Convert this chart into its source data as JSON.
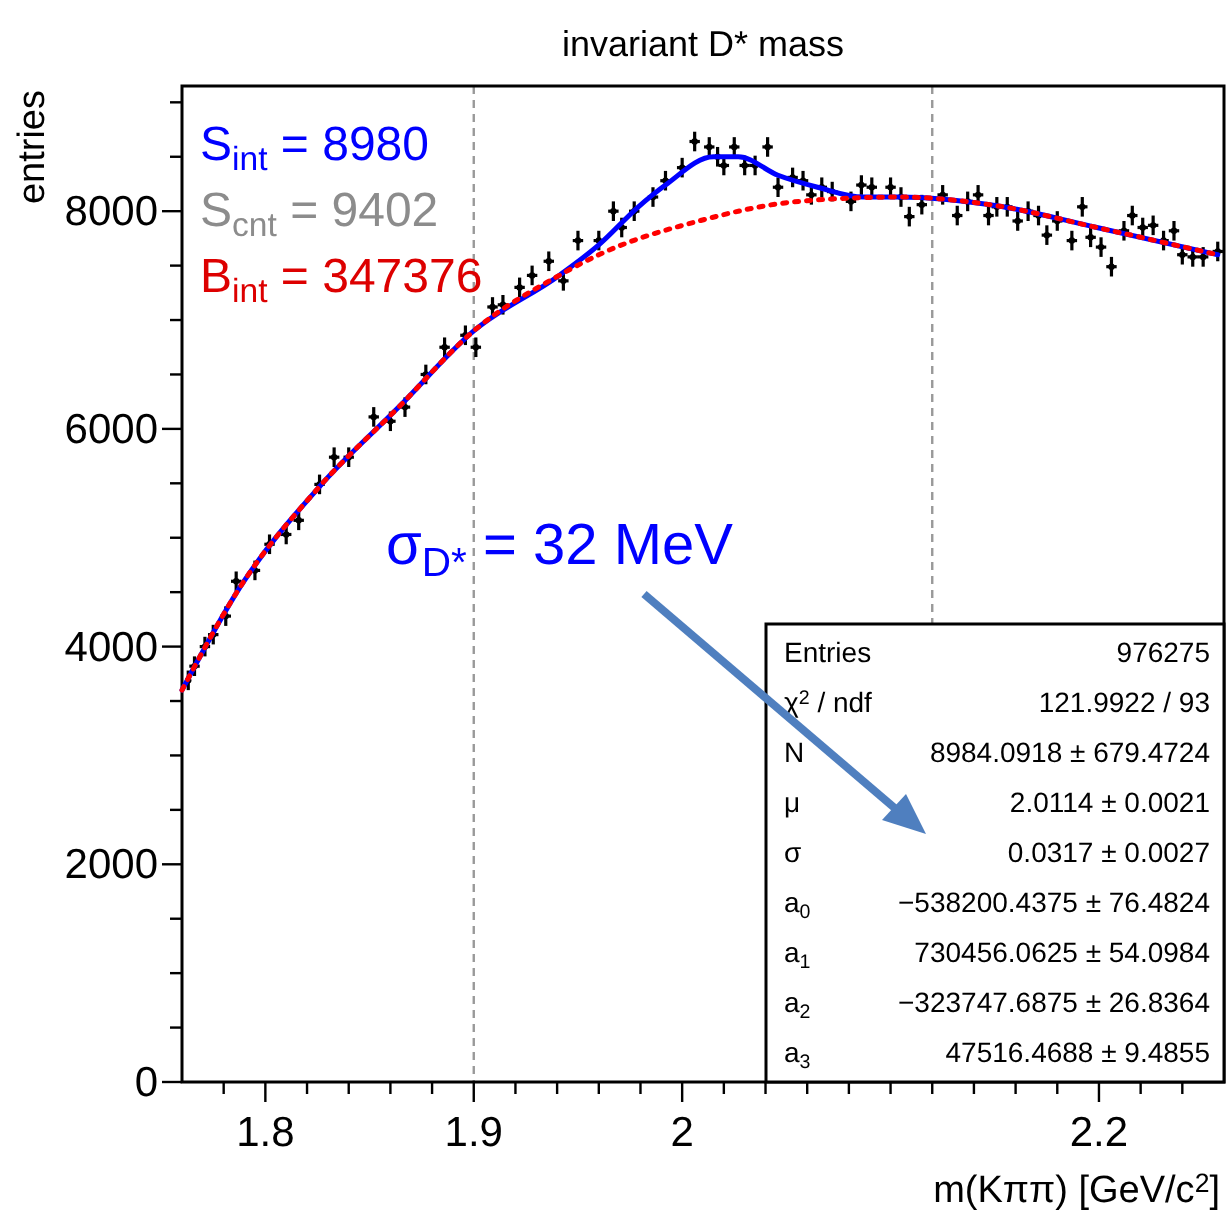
{
  "chart_data": {
    "type": "scatter",
    "title": "invariant D* mass",
    "xlabel": "m(Kππ) [GeV/c$^{2}$]",
    "ylabel": "entries",
    "xlim": [
      1.76,
      2.26
    ],
    "ylim": [
      0,
      9150
    ],
    "xticks": [
      1.8,
      1.9,
      2,
      {
        "value": 2.1,
        "label": null
      },
      2.2,
      {
        "value": 1.78,
        "label": null
      },
      {
        "value": 1.82,
        "label": null
      },
      {
        "value": 1.84,
        "label": null
      },
      {
        "value": 1.86,
        "label": null
      },
      {
        "value": 1.88,
        "label": null
      },
      {
        "value": 1.92,
        "label": null
      },
      {
        "value": 1.94,
        "label": null
      },
      {
        "value": 1.96,
        "label": null
      },
      {
        "value": 1.98,
        "label": null
      },
      {
        "value": 2.02,
        "label": null
      },
      {
        "value": 2.04,
        "label": null
      },
      {
        "value": 2.06,
        "label": null
      },
      {
        "value": 2.08,
        "label": null
      },
      {
        "value": 2.12,
        "label": null
      },
      {
        "value": 2.14,
        "label": null
      },
      {
        "value": 2.16,
        "label": null
      },
      {
        "value": 2.18,
        "label": null
      },
      {
        "value": 2.22,
        "label": null
      },
      {
        "value": 2.24,
        "label": null
      }
    ],
    "yticks": [
      0,
      2000,
      4000,
      6000,
      8000,
      {
        "value": 500,
        "label": null
      },
      {
        "value": 1000,
        "label": null
      },
      {
        "value": 1500,
        "label": null
      },
      {
        "value": 2500,
        "label": null
      },
      {
        "value": 3000,
        "label": null
      },
      {
        "value": 3500,
        "label": null
      },
      {
        "value": 4500,
        "label": null
      },
      {
        "value": 5000,
        "label": null
      },
      {
        "value": 5500,
        "label": null
      },
      {
        "value": 6500,
        "label": null
      },
      {
        "value": 7000,
        "label": null
      },
      {
        "value": 7500,
        "label": null
      },
      {
        "value": 8500,
        "label": null
      },
      {
        "value": 9000,
        "label": null
      }
    ],
    "grid": false,
    "series": [
      {
        "color": "#000000",
        "marker": "circle",
        "x": [
          1.763,
          1.766,
          1.771,
          1.775,
          1.781,
          1.786,
          1.795,
          1.802,
          1.81,
          1.816,
          1.826,
          1.833,
          1.84,
          1.852,
          1.86,
          1.867,
          1.877,
          1.886,
          1.896,
          1.901,
          1.909,
          1.914,
          1.922,
          1.928,
          1.936,
          1.943,
          1.95,
          1.96,
          1.967,
          1.971,
          1.977,
          1.986,
          1.992,
          2.0,
          2.006,
          2.013,
          2.017,
          2.02,
          2.025,
          2.03,
          2.035,
          2.041,
          2.046,
          2.053,
          2.058,
          2.062,
          2.067,
          2.072,
          2.081,
          2.086,
          2.091,
          2.1,
          2.105,
          2.109,
          2.115,
          2.125,
          2.132,
          2.137,
          2.142,
          2.147,
          2.151,
          2.156,
          2.161,
          2.166,
          2.171,
          2.175,
          2.18,
          2.187,
          2.192,
          2.196,
          2.201,
          2.206,
          2.212,
          2.216,
          2.221,
          2.226,
          2.231,
          2.236,
          2.24,
          2.245,
          2.25,
          2.257
        ],
        "values": [
          3690,
          3820,
          4000,
          4110,
          4280,
          4600,
          4700,
          4940,
          5030,
          5160,
          5490,
          5740,
          5740,
          6110,
          6070,
          6200,
          6500,
          6750,
          6860,
          6750,
          7120,
          7140,
          7300,
          7410,
          7540,
          7360,
          7730,
          7730,
          8000,
          7850,
          8000,
          8130,
          8280,
          8400,
          8640,
          8590,
          8500,
          8420,
          8590,
          8420,
          8420,
          8590,
          8220,
          8310,
          8280,
          8150,
          8220,
          8180,
          8090,
          8240,
          8220,
          8220,
          8130,
          7950,
          8060,
          8150,
          7960,
          8090,
          8150,
          7960,
          8040,
          8040,
          7910,
          8000,
          7960,
          7780,
          7910,
          7730,
          8040,
          7760,
          7670,
          7490,
          7820,
          7960,
          7850,
          7870,
          7730,
          7820,
          7600,
          7580,
          7580,
          7630
        ],
        "errors": [
          90,
          90,
          90,
          90,
          90,
          90,
          90,
          90,
          90,
          90,
          90,
          90,
          90,
          90,
          90,
          90,
          90,
          90,
          90,
          90,
          90,
          90,
          90,
          90,
          90,
          90,
          90,
          90,
          90,
          90,
          90,
          90,
          90,
          90,
          90,
          90,
          90,
          90,
          90,
          90,
          90,
          90,
          90,
          90,
          90,
          90,
          90,
          90,
          90,
          90,
          90,
          90,
          90,
          90,
          90,
          90,
          90,
          90,
          90,
          90,
          90,
          90,
          90,
          90,
          90,
          90,
          90,
          90,
          90,
          90,
          90,
          90,
          90,
          90,
          90,
          90,
          90,
          90,
          90,
          90,
          90,
          90
        ],
        "xerrors": [
          null,
          0.0025,
          0.0025,
          0.0025,
          0.0025,
          0.0025,
          0.0025,
          0.0025,
          0.0025,
          0.0025,
          0.0025,
          0.0025,
          0.0025,
          0.0025,
          0.0025,
          0.0025,
          0.0025,
          0.0025,
          0.0025,
          0.0025,
          0.0025,
          0.0025,
          0.0025,
          0.0025,
          0.0025,
          0.0025,
          0.0025,
          0.0025,
          0.0025,
          0.0025,
          0.0025,
          0.0025,
          0.0025,
          0.0025,
          0.0025,
          0.0025,
          0.0025,
          0.0025,
          0.0025,
          0.0025,
          0.0025,
          0.0025,
          0.0025,
          0.0025,
          0.0025,
          0.0025,
          0.0025,
          0.0025,
          0.0025,
          0.0025,
          0.0025,
          0.0025,
          0.0025,
          0.0025,
          0.0025,
          0.0025,
          0.0025,
          0.0025,
          0.0025,
          0.0025,
          0.0025,
          0.0025,
          0.0025,
          0.0025,
          0.0025,
          0.0025,
          0.0025,
          0.0025,
          0.0025,
          0.0025,
          0.0025,
          0.0025,
          0.0025,
          0.0025,
          0.0025,
          0.0025,
          0.0025,
          0.0025,
          0.0025,
          0.0025,
          0.0025,
          0.0025
        ]
      },
      {
        "type": "line",
        "color": "#0000ff",
        "line_style": "solid",
        "x": [
          1.76,
          1.788,
          1.826,
          1.864,
          1.9,
          1.941,
          1.96,
          1.979,
          1.992,
          2.015,
          2.027,
          2.046,
          2.065,
          2.087,
          2.104,
          2.151,
          2.199,
          2.257
        ],
        "values": [
          3600,
          4550,
          5470,
          6200,
          6900,
          7410,
          7690,
          8040,
          8240,
          8500,
          8500,
          8330,
          8220,
          8130,
          8130,
          8050,
          7850,
          7600
        ]
      },
      {
        "type": "line",
        "color": "#ff0000",
        "line_style": "dotted",
        "x": [
          1.76,
          1.788,
          1.826,
          1.864,
          1.9,
          1.941,
          1.96,
          2.008,
          2.056,
          2.104,
          2.151,
          2.199,
          2.257
        ],
        "values": [
          3600,
          4550,
          5470,
          6200,
          6900,
          7410,
          7600,
          7910,
          8090,
          8130,
          8050,
          7850,
          7600
        ]
      }
    ],
    "ref_lines": [
      {
        "axis": "x",
        "value": 1.9,
        "color": "#999999",
        "line_style": "dashed"
      },
      {
        "axis": "x",
        "value": 2.12,
        "color": "#999999",
        "line_style": "dashed"
      }
    ],
    "annotations": [
      "S$_{int}$ = 8980",
      "S$_{cnt}$ = 9402",
      "B$_{int}$ = 347376",
      "σ$_{D*}$  = 32 MeV",
      "Entries",
      "976275",
      "χ$^{2}$ / ndf",
      "121.9922 / 93",
      "N",
      "8984.0918 ± 679.4724",
      "μ",
      "2.0114 ± 0.0021",
      "σ",
      "0.0317 ± 0.0027",
      "a$_{0}$",
      "−538200.4375 ± 76.4824",
      "a$_{1}$",
      "730456.0625 ± 54.0984",
      "a$_{2}$",
      "−323747.6875 ± 26.8364",
      "a$_{3}$",
      "47516.4688 ± 9.4855"
    ]
  }
}
